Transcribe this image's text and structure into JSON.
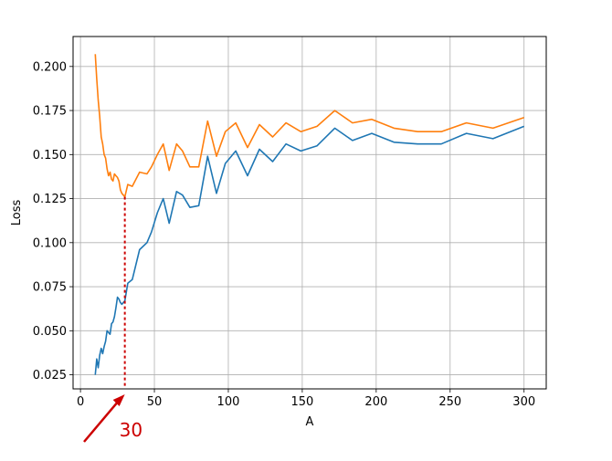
{
  "chart_data": {
    "type": "line",
    "title": "",
    "xlabel": "A",
    "ylabel": "Loss",
    "xlim": [
      -5,
      315
    ],
    "ylim": [
      0.017,
      0.217
    ],
    "xticks": [
      0,
      50,
      100,
      150,
      200,
      250,
      300
    ],
    "yticks": [
      0.025,
      0.05,
      0.075,
      0.1,
      0.125,
      0.15,
      0.175,
      0.2
    ],
    "grid": true,
    "series": [
      {
        "color": "#1f77b4",
        "x": [
          10,
          11,
          12,
          13,
          14,
          15,
          16,
          17,
          18,
          19,
          20,
          21,
          22,
          23,
          24,
          25,
          26,
          27,
          28,
          29,
          30,
          32,
          35,
          40,
          45,
          48,
          52,
          56,
          60,
          65,
          69,
          74,
          80,
          86,
          92,
          98,
          105,
          113,
          121,
          130,
          139,
          149,
          160,
          172,
          184,
          197,
          212,
          228,
          244,
          261,
          279,
          300
        ],
        "y": [
          0.025,
          0.034,
          0.029,
          0.036,
          0.04,
          0.037,
          0.041,
          0.044,
          0.05,
          0.049,
          0.048,
          0.054,
          0.055,
          0.058,
          0.063,
          0.069,
          0.068,
          0.066,
          0.065,
          0.066,
          0.067,
          0.077,
          0.079,
          0.096,
          0.1,
          0.106,
          0.117,
          0.125,
          0.111,
          0.129,
          0.127,
          0.12,
          0.121,
          0.149,
          0.128,
          0.145,
          0.152,
          0.138,
          0.153,
          0.146,
          0.156,
          0.152,
          0.155,
          0.165,
          0.158,
          0.162,
          0.157,
          0.156,
          0.156,
          0.162,
          0.159,
          0.166
        ]
      },
      {
        "color": "#ff7f0e",
        "x": [
          10,
          11,
          12,
          13,
          14,
          15,
          16,
          17,
          18,
          19,
          20,
          21,
          22,
          23,
          24,
          25,
          26,
          27,
          28,
          29,
          30,
          32,
          35,
          40,
          45,
          48,
          52,
          56,
          60,
          65,
          69,
          74,
          80,
          86,
          92,
          98,
          105,
          113,
          121,
          130,
          139,
          149,
          160,
          172,
          184,
          197,
          212,
          228,
          244,
          261,
          279,
          300
        ],
        "y": [
          0.207,
          0.193,
          0.181,
          0.172,
          0.16,
          0.156,
          0.15,
          0.148,
          0.142,
          0.138,
          0.14,
          0.136,
          0.135,
          0.139,
          0.138,
          0.137,
          0.135,
          0.13,
          0.128,
          0.127,
          0.126,
          0.133,
          0.132,
          0.14,
          0.139,
          0.143,
          0.15,
          0.156,
          0.141,
          0.156,
          0.152,
          0.143,
          0.143,
          0.169,
          0.149,
          0.163,
          0.168,
          0.154,
          0.167,
          0.16,
          0.168,
          0.163,
          0.166,
          0.175,
          0.168,
          0.17,
          0.165,
          0.163,
          0.163,
          0.168,
          0.165,
          0.171
        ]
      }
    ],
    "annotation": {
      "text": "30",
      "x": 30,
      "color": "#cc0000"
    }
  }
}
